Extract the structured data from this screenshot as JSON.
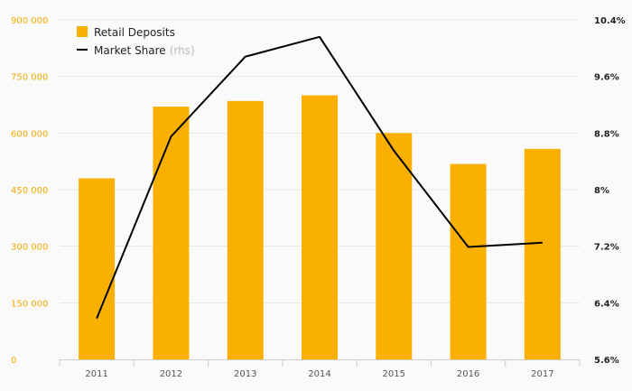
{
  "chart_data": {
    "type": "bar",
    "categories": [
      "2011",
      "2012",
      "2013",
      "2014",
      "2015",
      "2016",
      "2017"
    ],
    "series": [
      {
        "name": "Retail Deposits",
        "type": "bar",
        "axis": "left",
        "color": "#f9b000",
        "values": [
          480000,
          670000,
          685000,
          700000,
          600000,
          518000,
          558000
        ]
      },
      {
        "name": "Market Share",
        "suffix": "(rhs)",
        "type": "line",
        "axis": "right",
        "color": "#000000",
        "values": [
          6.18,
          8.75,
          9.88,
          10.16,
          8.55,
          7.19,
          7.25
        ]
      }
    ],
    "y_left": {
      "min": 0,
      "max": 900000,
      "ticks": [
        0,
        150000,
        300000,
        450000,
        600000,
        750000,
        900000
      ],
      "tick_labels": [
        "0",
        "150 000",
        "300 000",
        "450 000",
        "600 000",
        "750 000",
        "900 000"
      ],
      "color": "#f5a800"
    },
    "y_right": {
      "min": 5.6,
      "max": 10.4,
      "ticks": [
        5.6,
        6.4,
        7.2,
        8.0,
        8.8,
        9.6,
        10.4
      ],
      "tick_labels": [
        "5.6%",
        "6.4%",
        "7.2%",
        "8%",
        "8.8%",
        "9.6%",
        "10.4%"
      ]
    },
    "grid": true,
    "legend_position": "top-left",
    "title": "",
    "xlabel": "",
    "ylabel": ""
  }
}
